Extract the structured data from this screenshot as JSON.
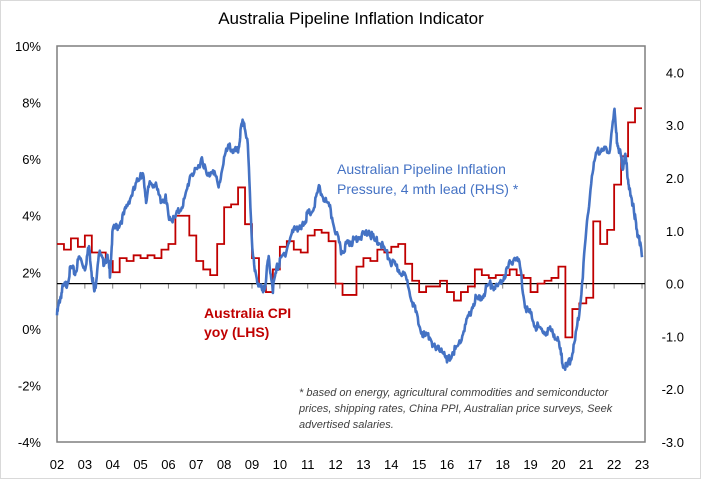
{
  "chart_data": {
    "type": "line",
    "title": "Australia Pipeline Inflation Indicator",
    "xlabel": "",
    "ylabel_left": "",
    "ylabel_right": "",
    "x_tick_labels": [
      "02",
      "03",
      "04",
      "05",
      "06",
      "07",
      "08",
      "09",
      "10",
      "11",
      "12",
      "13",
      "14",
      "15",
      "16",
      "17",
      "18",
      "19",
      "20",
      "21",
      "22",
      "23"
    ],
    "x_range": [
      2002,
      2023
    ],
    "y_left": {
      "range": [
        -4,
        10
      ],
      "ticks": [
        "10%",
        "8%",
        "6%",
        "4%",
        "2%",
        "0%",
        "-2%",
        "-4%"
      ],
      "tick_values": [
        10,
        8,
        6,
        4,
        2,
        0,
        -2,
        -4
      ]
    },
    "y_right": {
      "range": [
        -3.0,
        4.5
      ],
      "ticks": [
        "4.0",
        "3.0",
        "2.0",
        "1.0",
        "0.0",
        "-1.0",
        "-2.0",
        "-3.0"
      ],
      "tick_values": [
        4,
        3,
        2,
        1,
        0,
        -1,
        -2,
        -3
      ]
    },
    "reference_line": {
      "axis": "right",
      "value": 0.0
    },
    "grid": false,
    "annotations": {
      "pipeline_label": [
        "Australian Pipeline Inflation",
        "Pressure, 4 mth lead (RHS) *"
      ],
      "cpi_label": [
        "Australia CPI",
        "yoy (LHS)"
      ],
      "footnote": [
        "* based on energy, agricultural commodities and semiconductor",
        "prices, shipping rates, China PPI, Australian price surveys, Seek",
        "advertised salaries."
      ]
    },
    "colors": {
      "cpi": "#c00000",
      "pipeline": "#4472c4",
      "axis": "#000000",
      "frame": "#7f7f7f"
    },
    "series": [
      {
        "name": "Australia CPI yoy (LHS)",
        "axis": "left",
        "style": "step",
        "x": [
          2002.0,
          2002.25,
          2002.5,
          2002.75,
          2003.0,
          2003.25,
          2003.5,
          2003.75,
          2004.0,
          2004.25,
          2004.5,
          2004.75,
          2005.0,
          2005.25,
          2005.5,
          2005.75,
          2006.0,
          2006.25,
          2006.5,
          2006.75,
          2007.0,
          2007.25,
          2007.5,
          2007.75,
          2008.0,
          2008.25,
          2008.5,
          2008.75,
          2009.0,
          2009.25,
          2009.5,
          2009.75,
          2010.0,
          2010.25,
          2010.5,
          2010.75,
          2011.0,
          2011.25,
          2011.5,
          2011.75,
          2012.0,
          2012.25,
          2012.5,
          2012.75,
          2013.0,
          2013.25,
          2013.5,
          2013.75,
          2014.0,
          2014.25,
          2014.5,
          2014.75,
          2015.0,
          2015.25,
          2015.5,
          2015.75,
          2016.0,
          2016.25,
          2016.5,
          2016.75,
          2017.0,
          2017.25,
          2017.5,
          2017.75,
          2018.0,
          2018.25,
          2018.5,
          2018.75,
          2019.0,
          2019.25,
          2019.5,
          2019.75,
          2020.0,
          2020.25,
          2020.5,
          2020.75,
          2021.0,
          2021.25,
          2021.5,
          2021.75,
          2022.0,
          2022.25,
          2022.5,
          2022.75,
          2023.0
        ],
        "values": [
          3.0,
          2.8,
          3.2,
          2.9,
          3.3,
          2.7,
          2.7,
          2.4,
          2.0,
          2.5,
          2.4,
          2.6,
          2.5,
          2.6,
          2.5,
          2.8,
          3.0,
          4.0,
          4.0,
          3.3,
          2.4,
          2.1,
          1.9,
          3.0,
          4.3,
          4.4,
          5.0,
          3.7,
          2.5,
          1.5,
          1.3,
          2.1,
          2.9,
          3.1,
          2.8,
          2.7,
          3.3,
          3.5,
          3.4,
          3.1,
          1.6,
          1.2,
          1.2,
          2.2,
          2.5,
          2.4,
          2.8,
          2.7,
          2.9,
          3.0,
          2.3,
          1.7,
          1.3,
          1.5,
          1.5,
          1.7,
          1.3,
          1.0,
          1.3,
          1.5,
          2.1,
          1.9,
          1.8,
          1.9,
          1.9,
          2.1,
          1.9,
          1.8,
          1.3,
          1.6,
          1.7,
          1.8,
          2.2,
          -0.3,
          0.7,
          0.9,
          1.1,
          3.8,
          3.0,
          3.5,
          5.1,
          6.1,
          7.3,
          7.8,
          7.8
        ]
      },
      {
        "name": "Australian Pipeline Inflation Pressure, 4 mth lead (RHS)",
        "axis": "right",
        "style": "line",
        "x": [
          2002.0,
          2002.1,
          2002.2,
          2002.35,
          2002.5,
          2002.65,
          2002.8,
          2003.0,
          2003.15,
          2003.25,
          2003.35,
          2003.5,
          2003.65,
          2003.8,
          2003.9,
          2004.0,
          2004.2,
          2004.4,
          2004.6,
          2004.8,
          2005.0,
          2005.1,
          2005.2,
          2005.35,
          2005.5,
          2005.7,
          2005.9,
          2006.0,
          2006.2,
          2006.4,
          2006.6,
          2006.8,
          2007.0,
          2007.2,
          2007.4,
          2007.6,
          2007.8,
          2008.0,
          2008.2,
          2008.35,
          2008.5,
          2008.6,
          2008.7,
          2008.85,
          2009.0,
          2009.1,
          2009.25,
          2009.4,
          2009.5,
          2009.6,
          2009.75,
          2009.9,
          2010.0,
          2010.2,
          2010.4,
          2010.6,
          2010.75,
          2010.9,
          2011.0,
          2011.2,
          2011.4,
          2011.6,
          2011.8,
          2012.0,
          2012.2,
          2012.35,
          2012.5,
          2012.65,
          2012.8,
          2013.0,
          2013.2,
          2013.4,
          2013.6,
          2013.8,
          2014.0,
          2014.2,
          2014.4,
          2014.6,
          2014.8,
          2015.0,
          2015.2,
          2015.4,
          2015.6,
          2015.8,
          2016.0,
          2016.2,
          2016.4,
          2016.6,
          2016.8,
          2017.0,
          2017.2,
          2017.4,
          2017.6,
          2017.8,
          2018.0,
          2018.2,
          2018.4,
          2018.6,
          2018.8,
          2019.0,
          2019.2,
          2019.4,
          2019.6,
          2019.8,
          2020.0,
          2020.15,
          2020.3,
          2020.45,
          2020.6,
          2020.8,
          2021.0,
          2021.2,
          2021.4,
          2021.6,
          2021.8,
          2022.0,
          2022.1,
          2022.2,
          2022.3,
          2022.4,
          2022.5,
          2022.6,
          2022.7,
          2022.8,
          2022.9,
          2023.0
        ],
        "values": [
          -0.6,
          -0.3,
          -0.1,
          0.0,
          0.3,
          0.2,
          0.5,
          0.3,
          0.7,
          0.2,
          -0.2,
          0.6,
          0.4,
          0.5,
          0.2,
          1.0,
          1.1,
          1.3,
          1.6,
          1.8,
          2.1,
          2.0,
          1.6,
          1.9,
          1.9,
          1.6,
          1.6,
          1.3,
          1.2,
          1.4,
          1.6,
          2.1,
          2.1,
          2.4,
          2.0,
          2.2,
          1.8,
          2.4,
          2.6,
          2.5,
          2.5,
          2.9,
          3.1,
          2.6,
          0.8,
          0.2,
          0.0,
          -0.2,
          0.1,
          0.5,
          -0.1,
          0.3,
          0.4,
          0.6,
          0.9,
          1.1,
          1.0,
          1.2,
          1.3,
          1.4,
          1.8,
          1.6,
          1.4,
          1.0,
          0.6,
          0.7,
          0.8,
          0.8,
          0.9,
          0.9,
          1.0,
          0.8,
          0.8,
          0.6,
          0.4,
          0.3,
          0.2,
          0.0,
          -0.4,
          -0.8,
          -1.0,
          -1.0,
          -1.3,
          -1.2,
          -1.5,
          -1.3,
          -1.2,
          -0.9,
          -0.6,
          -0.3,
          -0.3,
          -0.1,
          0.0,
          -0.1,
          0.1,
          0.3,
          0.5,
          0.4,
          -0.4,
          -0.6,
          -0.8,
          -0.9,
          -0.9,
          -0.9,
          -1.1,
          -1.5,
          -1.6,
          -1.4,
          -1.1,
          -0.3,
          1.0,
          2.1,
          2.5,
          2.6,
          2.4,
          3.3,
          2.7,
          2.5,
          2.2,
          2.4,
          2.0,
          1.6,
          1.5,
          1.0,
          0.9,
          0.5
        ]
      }
    ]
  }
}
